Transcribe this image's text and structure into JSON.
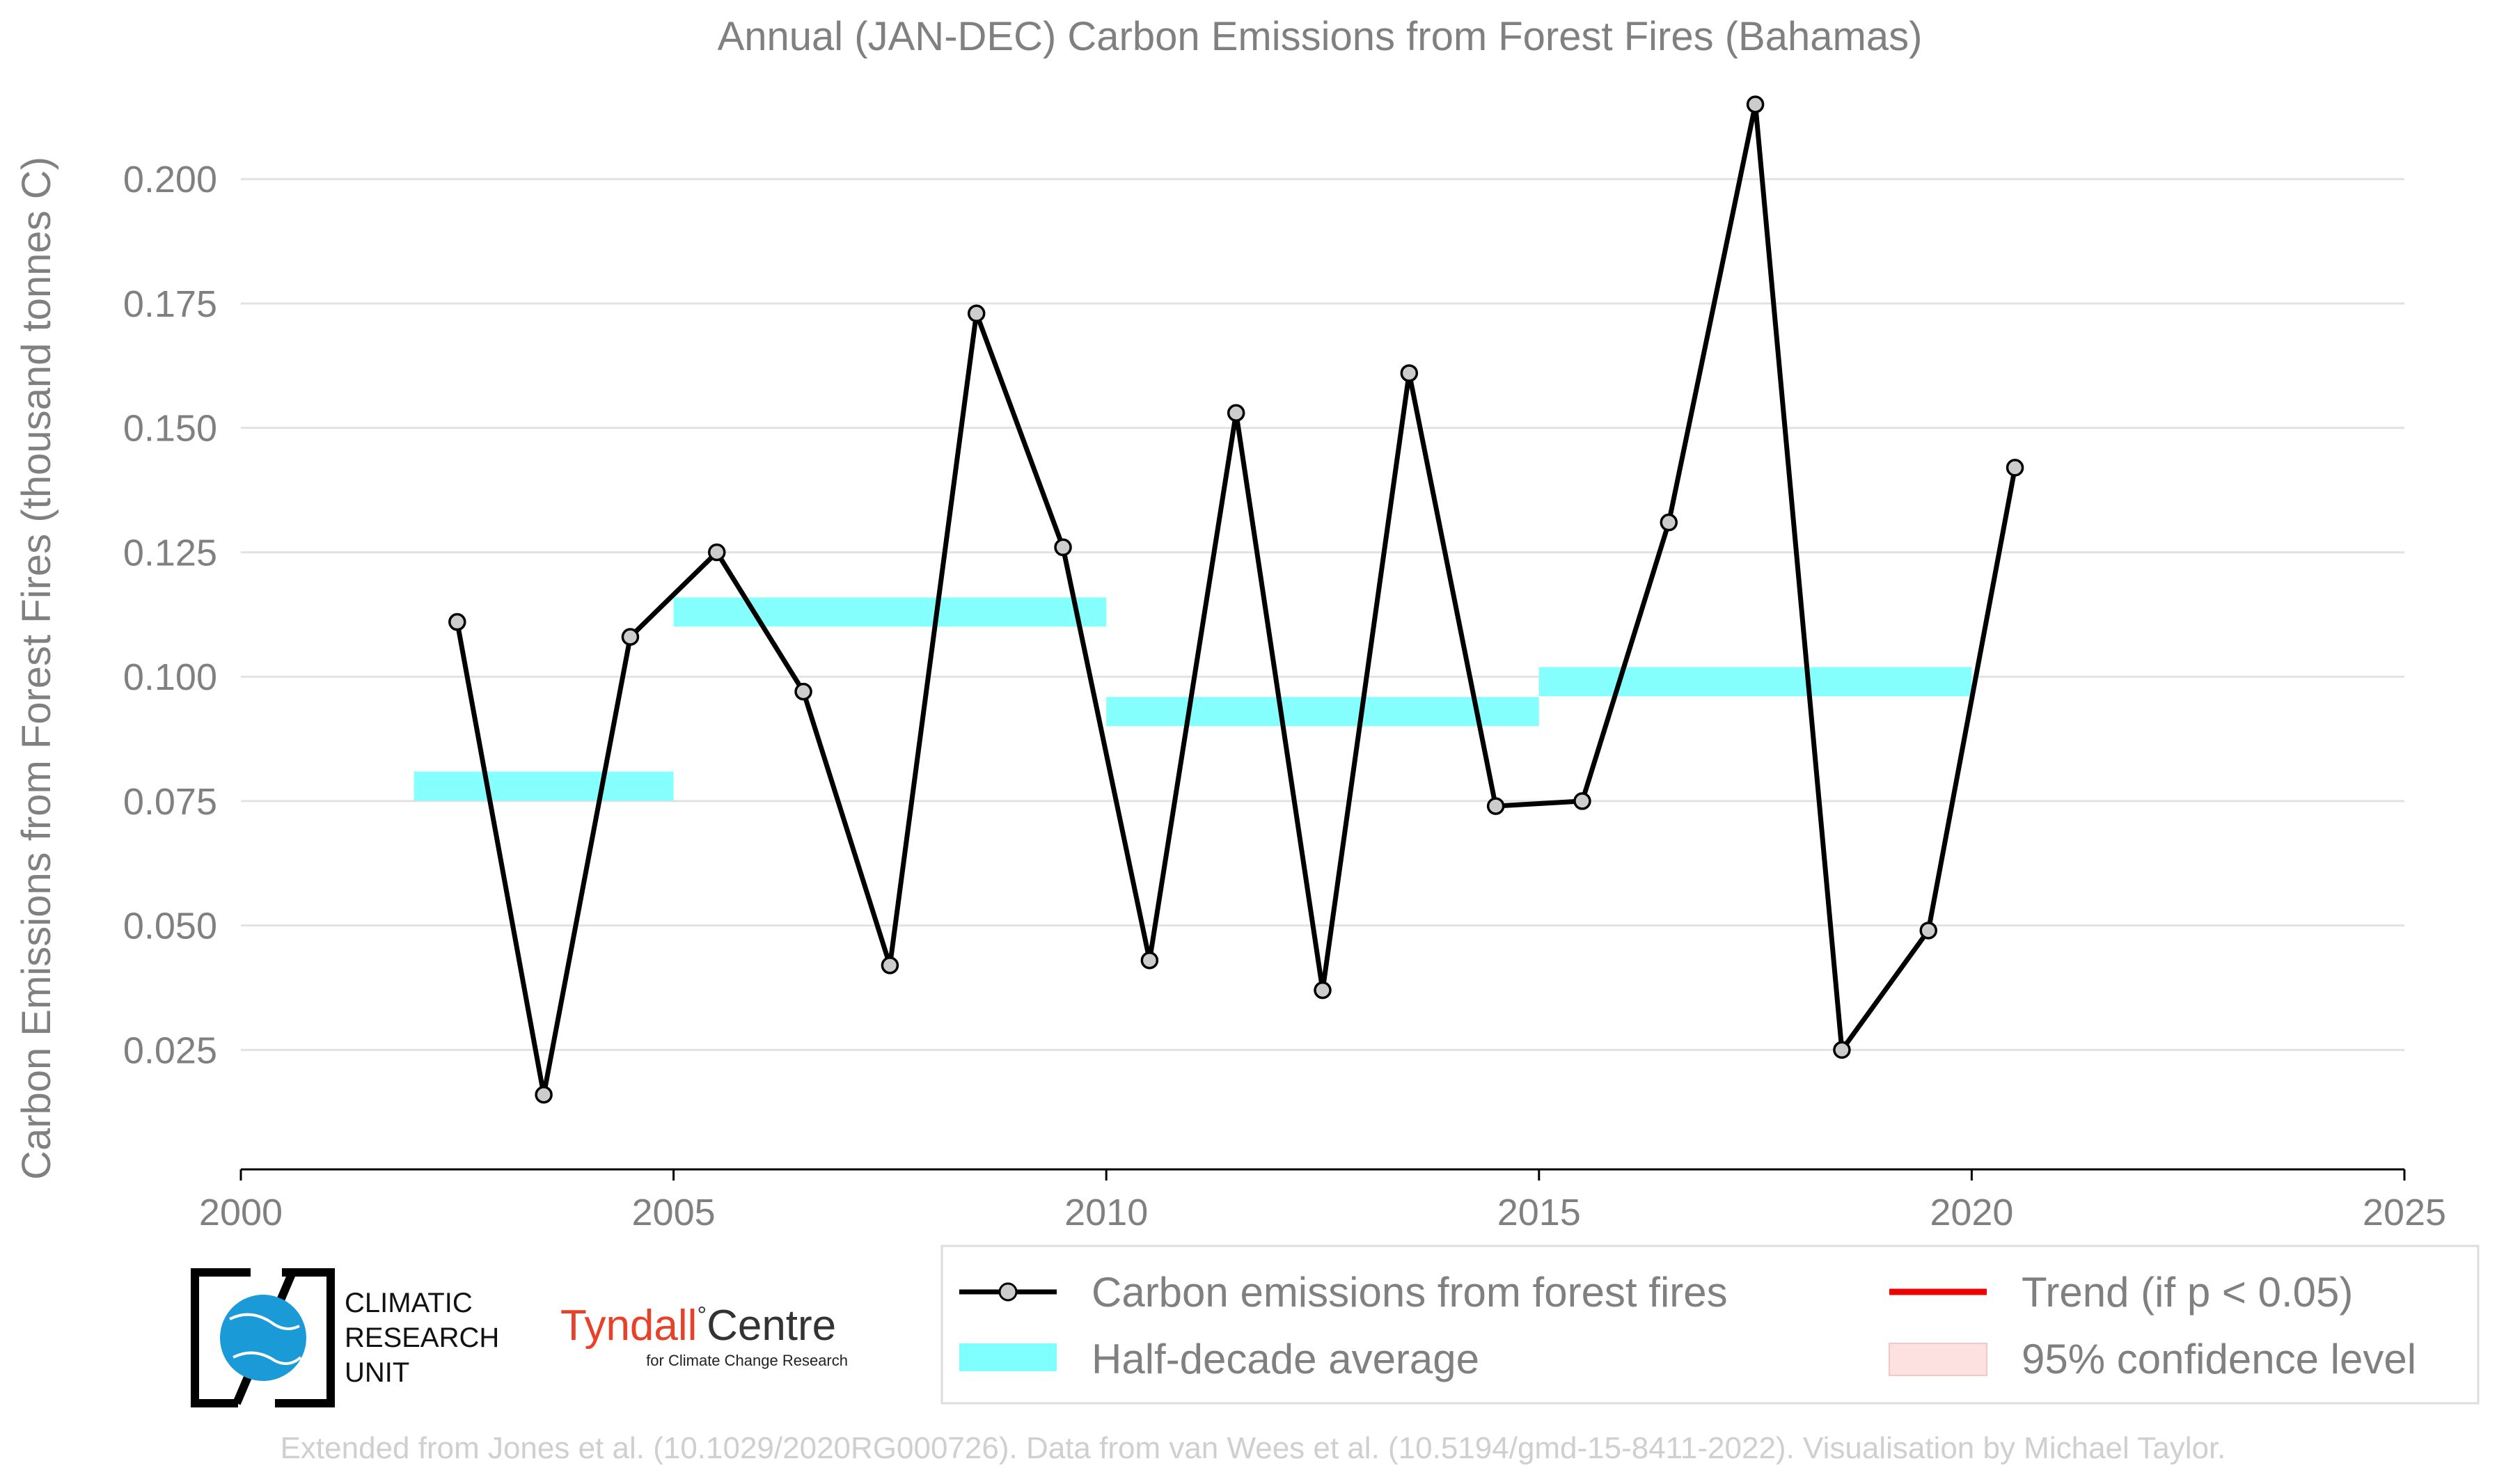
{
  "chart_data": {
    "type": "line",
    "title": "Annual (JAN-DEC) Carbon Emissions from Forest Fires (Bahamas)",
    "xlabel": "",
    "ylabel": "Carbon Emissions from Forest Fires (thousand tonnes C)",
    "xlim": [
      2000,
      2025
    ],
    "ylim": [
      0.001,
      0.215
    ],
    "x_ticks": [
      2000,
      2005,
      2010,
      2015,
      2020,
      2025
    ],
    "y_ticks": [
      0.025,
      0.05,
      0.075,
      0.1,
      0.125,
      0.15,
      0.175,
      0.2
    ],
    "y_tick_labels": [
      "0.025",
      "0.050",
      "0.075",
      "0.100",
      "0.125",
      "0.150",
      "0.175",
      "0.200"
    ],
    "grid": "horizontal",
    "legend_position": "bottom",
    "series": [
      {
        "name": "Carbon emissions from forest fires",
        "color": "#000000",
        "x": [
          2002.5,
          2003.5,
          2004.5,
          2005.5,
          2006.5,
          2007.5,
          2008.5,
          2009.5,
          2010.5,
          2011.5,
          2012.5,
          2013.5,
          2014.5,
          2015.5,
          2016.5,
          2017.5,
          2018.5,
          2019.5,
          2020.5
        ],
        "values": [
          0.111,
          0.016,
          0.108,
          0.125,
          0.097,
          0.042,
          0.173,
          0.126,
          0.043,
          0.153,
          0.037,
          0.161,
          0.074,
          0.075,
          0.131,
          0.215,
          0.025,
          0.049,
          0.142
        ]
      }
    ],
    "half_decade_average": {
      "name": "Half-decade average",
      "color": "#7fffff",
      "segments": [
        {
          "x0": 2002,
          "x1": 2005,
          "value": 0.078
        },
        {
          "x0": 2005,
          "x1": 2010,
          "value": 0.113
        },
        {
          "x0": 2010,
          "x1": 2015,
          "value": 0.093
        },
        {
          "x0": 2015,
          "x1": 2020,
          "value": 0.099
        }
      ]
    },
    "legend": {
      "series_label": "Carbon emissions from forest fires",
      "average_label": "Half-decade average",
      "trend_label": "Trend (if p < 0.05)",
      "confidence_label": "95% confidence level",
      "trend_color": "#ee0000",
      "confidence_color": "#fde0e0"
    }
  },
  "logos": {
    "cru_lines": [
      "CLIMATIC",
      "RESEARCH",
      "UNIT"
    ],
    "tyndall_main": "Tyndall",
    "tyndall_degree": "°",
    "tyndall_centre": "Centre",
    "tyndall_sub": "for Climate Change Research"
  },
  "footer": "Extended from Jones et al. (10.1029/2020RG000726). Data from van Wees et al. (10.5194/gmd-15-8411-2022). Visualisation by Michael Taylor."
}
